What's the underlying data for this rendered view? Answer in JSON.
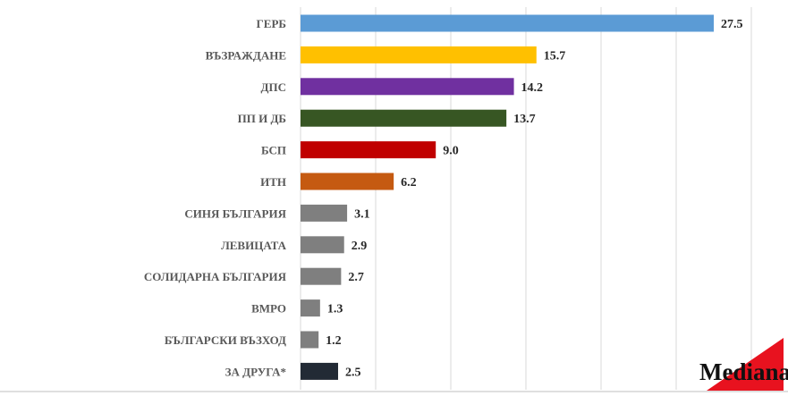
{
  "chart_data": {
    "type": "bar",
    "orientation": "horizontal",
    "categories": [
      "ГЕРБ",
      "ВЪЗРАЖДАНЕ",
      "ДПС",
      "ПП И ДБ",
      "БСП",
      "ИТН",
      "СИНЯ БЪЛГАРИЯ",
      "ЛЕВИЦАТА",
      "СОЛИДАРНА БЪЛГАРИЯ",
      "ВМРО",
      "БЪЛГАРСКИ ВЪЗХОД",
      "ЗА ДРУГА*"
    ],
    "values": [
      27.5,
      15.7,
      14.2,
      13.7,
      9.0,
      6.2,
      3.1,
      2.9,
      2.7,
      1.3,
      1.2,
      2.5
    ],
    "value_labels": [
      "27.5",
      "15.7",
      "14.2",
      "13.7",
      "9.0",
      "6.2",
      "3.1",
      "2.9",
      "2.7",
      "1.3",
      "1.2",
      "2.5"
    ],
    "colors": [
      "#5b9bd5",
      "#ffc000",
      "#7030a0",
      "#375623",
      "#c00000",
      "#c55a11",
      "#7f7f7f",
      "#7f7f7f",
      "#7f7f7f",
      "#7f7f7f",
      "#7f7f7f",
      "#222a35"
    ],
    "xlim": [
      0,
      30
    ],
    "grid": true,
    "title": "",
    "xlabel": "",
    "ylabel": ""
  },
  "logo": {
    "text": "Mediana",
    "accent_color": "#e8121f"
  }
}
